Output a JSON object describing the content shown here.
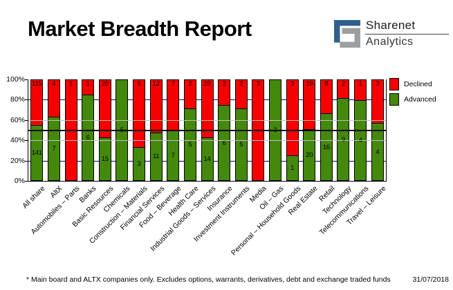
{
  "header": {
    "title": "Market Breadth Report",
    "logo": {
      "line1": "Sharenet",
      "line2": "Analytics"
    }
  },
  "legend": {
    "items": [
      {
        "label": "Declined",
        "color": "#f80000"
      },
      {
        "label": "Advanced",
        "color": "#44880c"
      }
    ]
  },
  "footer": {
    "note": "* Main board and ALTX companies only. Excludes options, warrants, derivatives, debt and exchange traded funds",
    "date": "31/07/2018"
  },
  "colors": {
    "declined": "#f80000",
    "advanced": "#44880c",
    "grid_navy": "#000080",
    "grid_silver": "#c0c0c0",
    "reference_line": "#000000",
    "logo_blue": "#2f5f8e",
    "logo_gray": "#9c9ea0"
  },
  "chart_data": {
    "type": "bar",
    "subtype": "stacked-100-percent",
    "title": "Market Breadth Report",
    "categories": [
      "All share",
      "AltX",
      "Automobiles – Parts",
      "Banks",
      "Basic Resources",
      "Chemicals",
      "Construction – Materials",
      "Financial Services",
      "Food – Beverage",
      "Health Care",
      "Industrial Goods – Services",
      "Insurance",
      "Investment Instruments",
      "Media",
      "Oil – Gas",
      "Personal – Household Goods",
      "Real Estate",
      "Retail",
      "Technology",
      "Telecommunications",
      "Travel – Leisure"
    ],
    "series": [
      {
        "name": "Advanced",
        "color": "#44880c",
        "values": [
          141,
          7,
          0,
          6,
          15,
          5,
          3,
          11,
          7,
          5,
          14,
          6,
          5,
          0,
          3,
          1,
          20,
          16,
          9,
          4,
          4
        ]
      },
      {
        "name": "Declined",
        "color": "#f80000",
        "values": [
          115,
          4,
          1,
          1,
          20,
          0,
          6,
          12,
          7,
          2,
          19,
          2,
          2,
          3,
          0,
          3,
          19,
          8,
          2,
          1,
          3
        ]
      }
    ],
    "ylabel": "",
    "xlabel": "",
    "ylim": [
      0,
      100
    ],
    "yticks": [
      0,
      20,
      40,
      60,
      80,
      100
    ],
    "ytick_labels": [
      "0%",
      "20%",
      "40%",
      "60%",
      "80%",
      "100%"
    ],
    "grid": "horizontal",
    "reference_line_pct": 50,
    "legend_position": "top-right"
  }
}
